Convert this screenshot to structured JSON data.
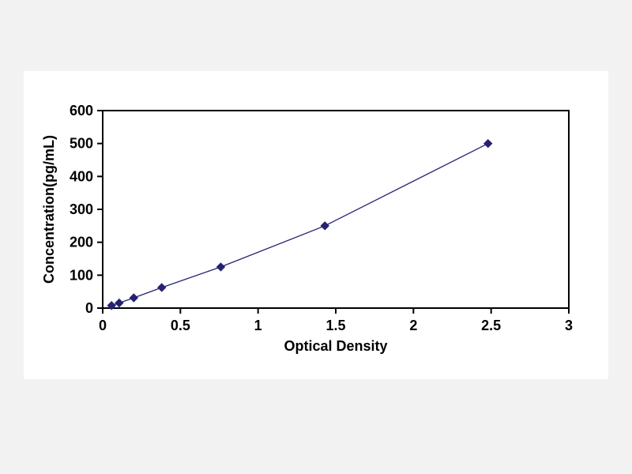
{
  "page": {
    "background_color": "#f2f2f2",
    "panel_background": "#ffffff"
  },
  "chart_data": {
    "type": "line",
    "title": "",
    "xlabel": "Optical Density",
    "ylabel": "Concentration(pg/mL)",
    "x": [
      0.057,
      0.106,
      0.2,
      0.38,
      0.76,
      1.43,
      2.48
    ],
    "y": [
      7.8,
      15.6,
      31.2,
      62.5,
      125,
      250,
      500
    ],
    "xlim": [
      0,
      3
    ],
    "ylim": [
      0,
      600
    ],
    "x_ticks": [
      0,
      0.5,
      1,
      1.5,
      2,
      2.5,
      3
    ],
    "y_ticks": [
      0,
      100,
      200,
      300,
      400,
      500,
      600
    ],
    "grid": false,
    "legend": false,
    "marker": "diamond",
    "marker_color": "#252272",
    "line_color": "#252272",
    "axis_color": "#000000",
    "tick_label_color": "#000000",
    "plot_background": "#ffffff"
  }
}
